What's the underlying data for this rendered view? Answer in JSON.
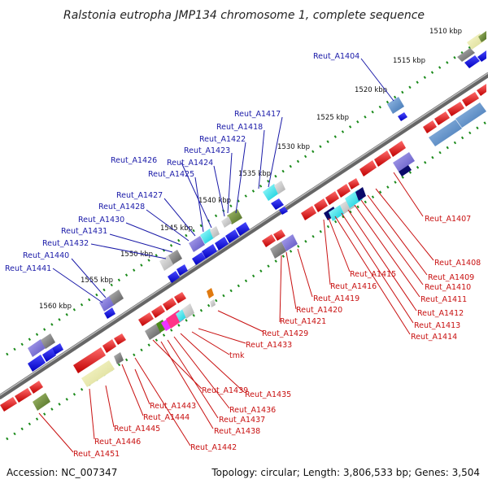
{
  "title": "Ralstonia eutropha JMP134 chromosome 1, complete sequence",
  "footer": {
    "accession": "Accession: NC_007347",
    "topology": "Topology: circular; Length: 3,806,533 bp; Genes: 3,504"
  },
  "kbp_ticks": [
    "1510 kbp",
    "1515 kbp",
    "1520 kbp",
    "1525 kbp",
    "1530 kbp",
    "1535 kbp",
    "1540 kbp",
    "1545 kbp",
    "1550 kbp",
    "1555 kbp",
    "1560 kbp"
  ],
  "top_labels": [
    "Reut_A1404",
    "Reut_A1417",
    "Reut_A1418",
    "Reut_A1422",
    "Reut_A1423",
    "Reut_A1424",
    "Reut_A1426",
    "Reut_A1425",
    "Reut_A1427",
    "Reut_A1428",
    "Reut_A1430",
    "Reut_A1431",
    "Reut_A1432",
    "Reut_A1440",
    "Reut_A1441"
  ],
  "bottom_labels": [
    "Reut_A1407",
    "Reut_A1408",
    "Reut_A1409",
    "Reut_A1410",
    "Reut_A1411",
    "Reut_A1412",
    "Reut_A1413",
    "Reut_A1414",
    "Reut_A1415",
    "Reut_A1416",
    "Reut_A1419",
    "Reut_A1420",
    "Reut_A1421",
    "Reut_A1429",
    "Reut_A1433",
    "tmk",
    "Reut_A1435",
    "Reut_A1436",
    "Reut_A1437",
    "Reut_A1438",
    "Reut_A1439",
    "Reut_A1443",
    "Reut_A1444",
    "Reut_A1445",
    "Reut_A1446",
    "Reut_A1451",
    "Reut_A1442"
  ],
  "colors": {
    "forward_gene": "#1010e0",
    "reverse_gene": "#e01010",
    "backbone": "#777777",
    "tick_dots": "#1a8a1a",
    "top_label": "#1a1aa8",
    "bottom_label": "#c81010"
  }
}
